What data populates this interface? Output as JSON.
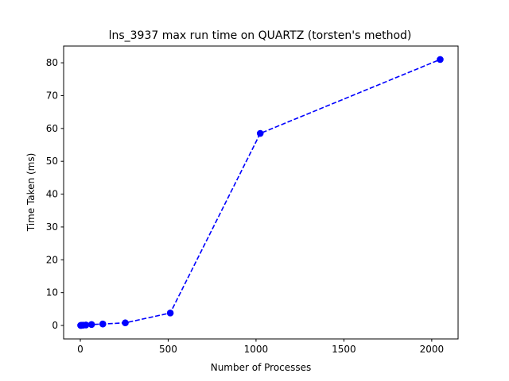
{
  "chart_data": {
    "type": "line",
    "title": "lns_3937 max run time on QUARTZ (torsten's method)",
    "xlabel": "Number of Processes",
    "ylabel": "Time Taken (ms)",
    "xlim": [
      -95,
      2150
    ],
    "ylim": [
      -4.1,
      85.1
    ],
    "xticks": [
      0,
      500,
      1000,
      1500,
      2000
    ],
    "yticks": [
      0,
      10,
      20,
      30,
      40,
      50,
      60,
      70,
      80
    ],
    "grid": false,
    "series": [
      {
        "color": "#0000ff",
        "linestyle": "dashed",
        "marker": "circle",
        "x": [
          2,
          4,
          8,
          16,
          32,
          64,
          128,
          256,
          512,
          1024,
          2048
        ],
        "y": [
          0.02,
          0.03,
          0.05,
          0.08,
          0.15,
          0.3,
          0.45,
          0.8,
          3.8,
          58.5,
          81.0
        ]
      }
    ]
  }
}
